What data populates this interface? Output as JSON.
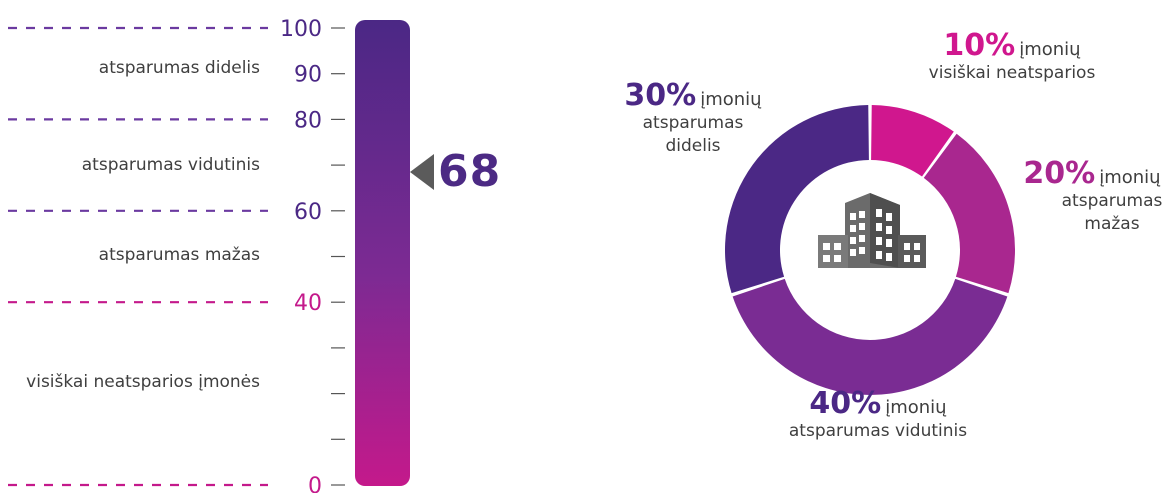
{
  "scale": {
    "ticks": [
      "100",
      "90",
      "80",
      "60",
      "40",
      "0"
    ],
    "current_value": "68",
    "bands": [
      {
        "label": "atsparumas didelis"
      },
      {
        "label": "atsparumas vidutinis"
      },
      {
        "label": "atsparumas mažas"
      },
      {
        "label": "visiškai neatsparios įmonės"
      }
    ],
    "colors": {
      "top": "#4b2885",
      "mid": "#7d2a93",
      "bottom": "#c4198b",
      "dash_purple": "#6b3aa0",
      "dash_pink": "#c4198b"
    }
  },
  "donut": {
    "slices": [
      {
        "pct": "10%",
        "firms": "įmonių",
        "desc": "visiškai neatsparios",
        "value": 10,
        "color": "#d0178e"
      },
      {
        "pct": "20%",
        "firms": "įmonių",
        "desc": "atsparumas mažas",
        "value": 20,
        "color": "#a9278f"
      },
      {
        "pct": "40%",
        "firms": "įmonių",
        "desc": "atsparumas vidutinis",
        "value": 40,
        "color": "#7a2c93"
      },
      {
        "pct": "30%",
        "firms": "įmonių",
        "desc": "atsparumas didelis",
        "value": 30,
        "color": "#4b2885"
      }
    ],
    "icon": "office-building-icon"
  },
  "chart_data": [
    {
      "type": "bar",
      "categories": [
        "atsparumas didelis",
        "atsparumas vidutinis",
        "atsparumas mažas",
        "visiškai neatsparios įmonės"
      ],
      "band_ranges": [
        [
          80,
          100
        ],
        [
          60,
          80
        ],
        [
          40,
          60
        ],
        [
          0,
          40
        ]
      ],
      "ylim": [
        0,
        100
      ],
      "ticks": [
        0,
        40,
        60,
        80,
        90,
        100
      ],
      "marker_value": 68
    },
    {
      "type": "pie",
      "labels": [
        "visiškai neatsparios",
        "atsparumas mažas",
        "atsparumas vidutinis",
        "atsparumas didelis"
      ],
      "values": [
        10,
        20,
        40,
        30
      ],
      "unit": "%"
    }
  ]
}
